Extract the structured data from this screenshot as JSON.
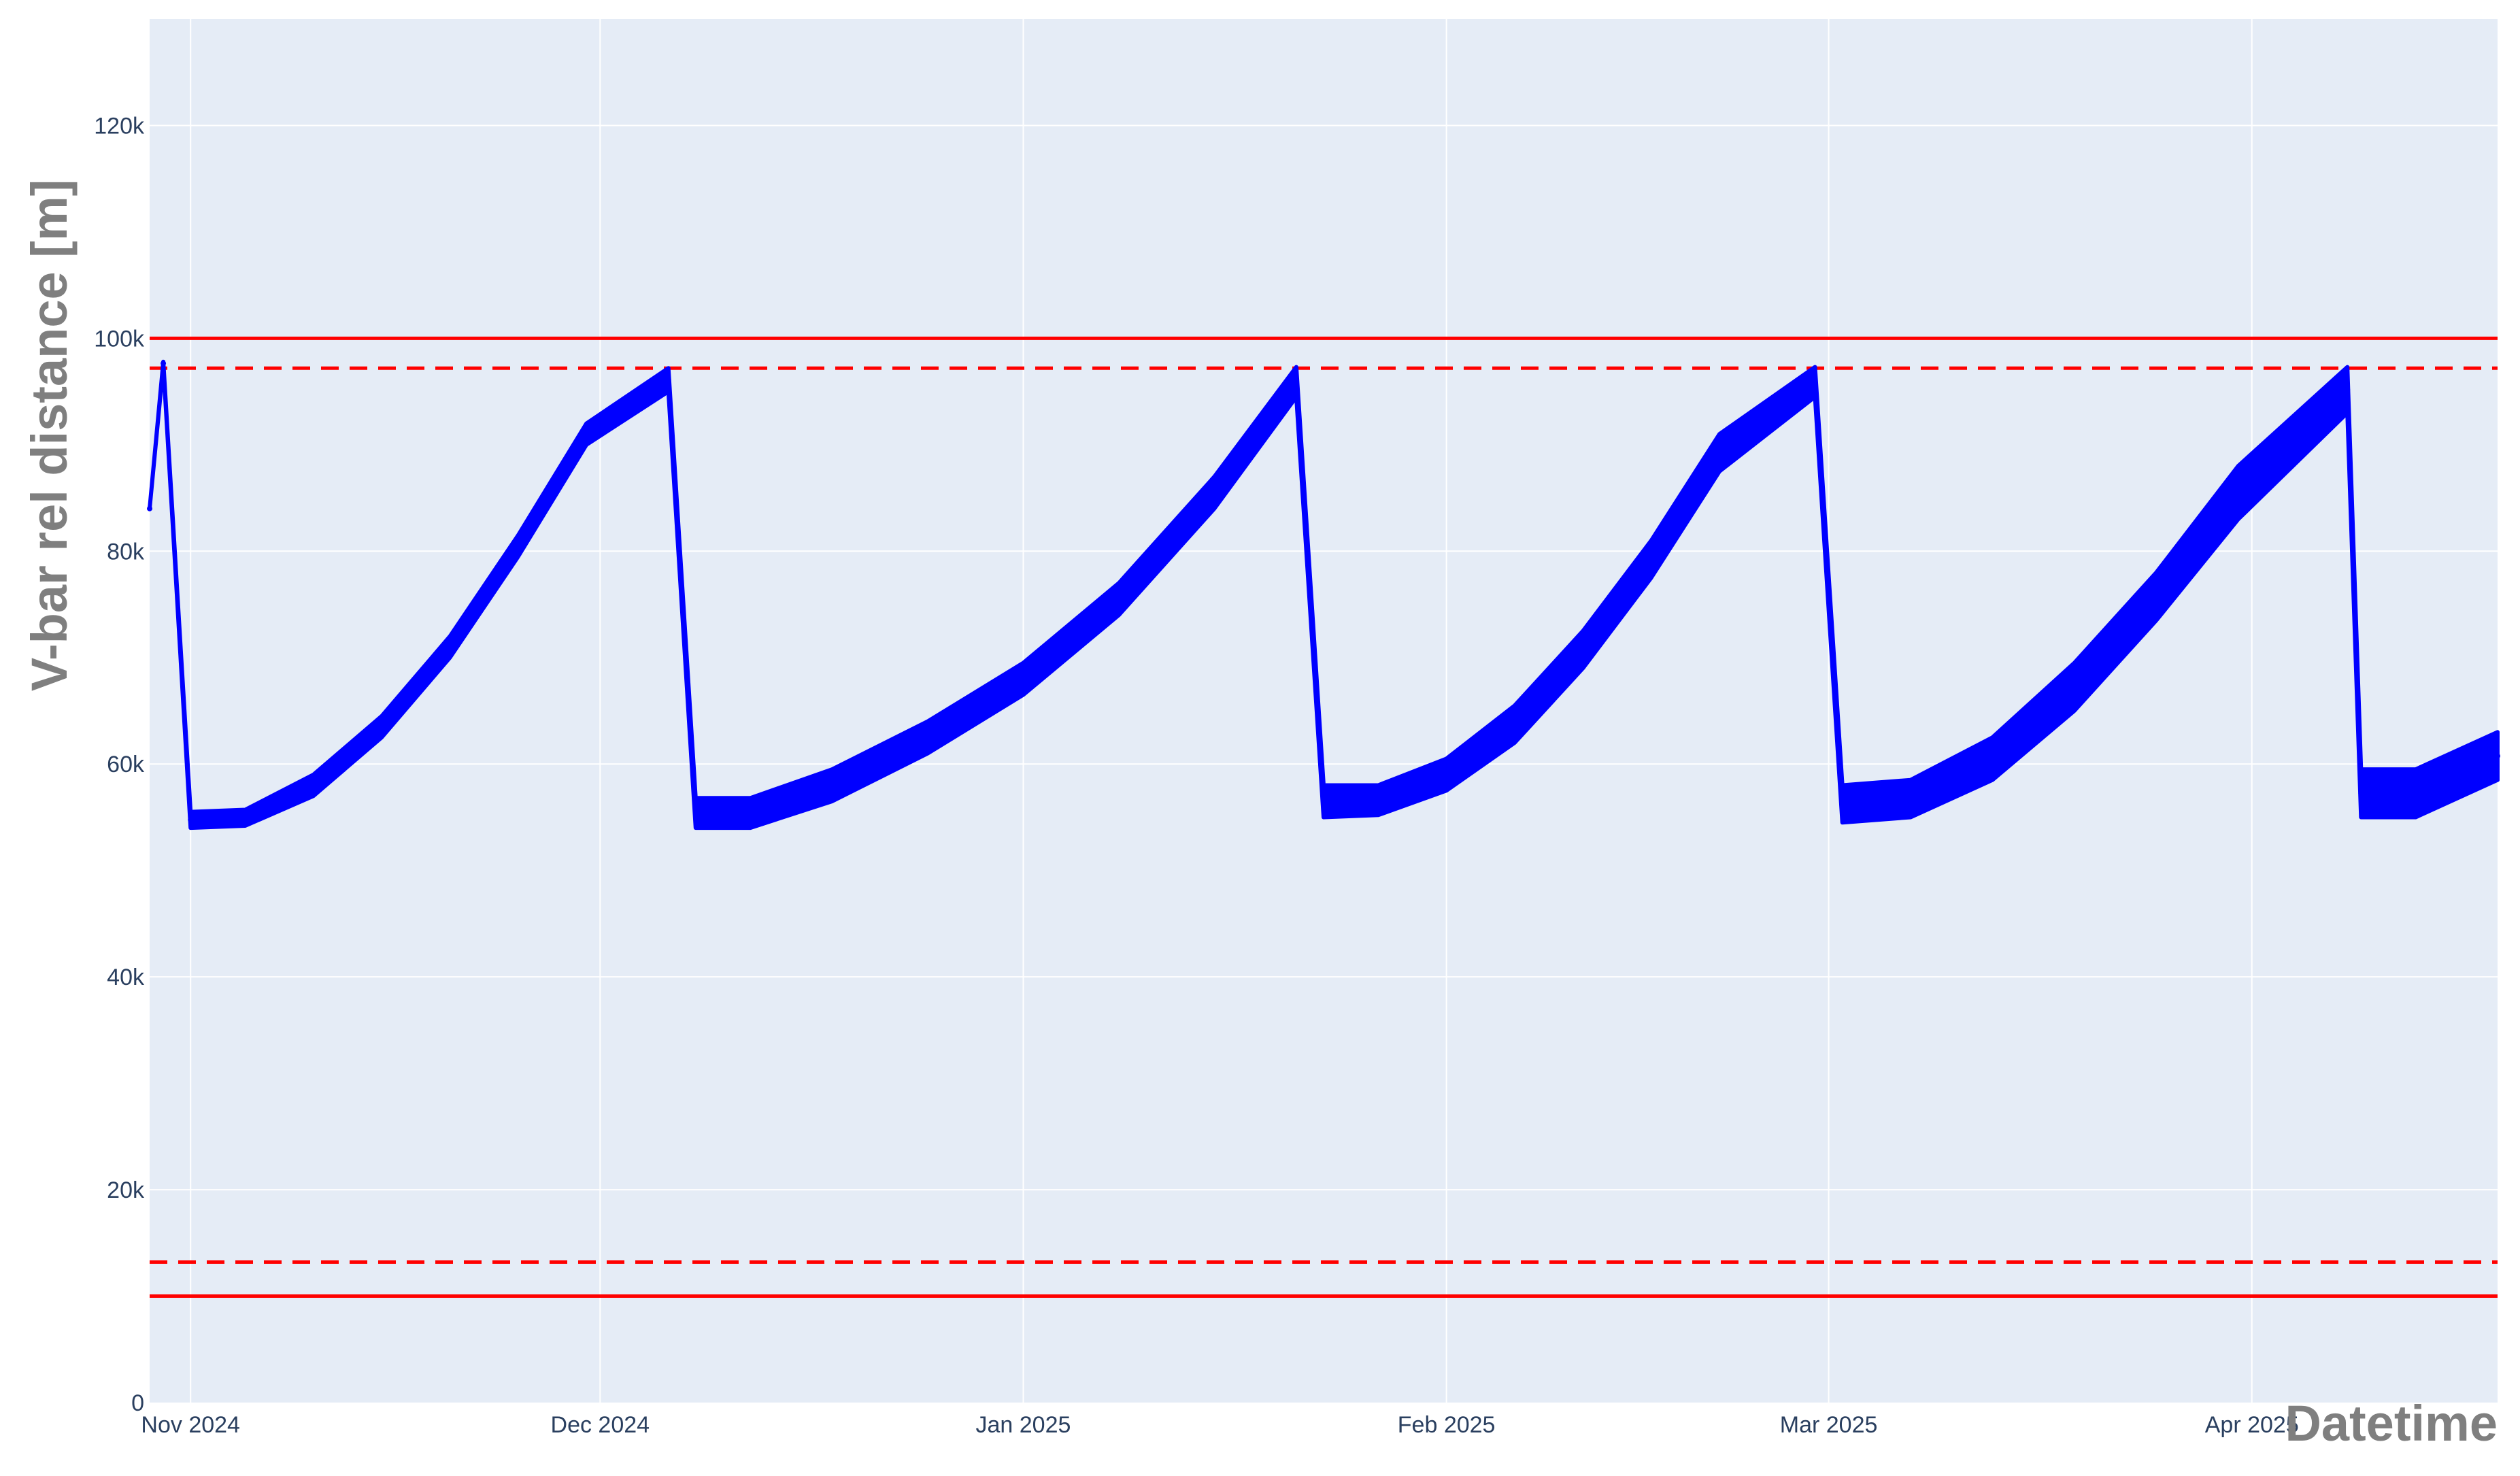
{
  "chart_data": {
    "type": "line",
    "title": "",
    "xlabel": "Datetime",
    "ylabel": "V-bar rel distance [m]",
    "x_range": [
      "2024-10-29",
      "2025-04-19"
    ],
    "ylim": [
      0,
      130000
    ],
    "y_ticks": [
      {
        "value": 0,
        "label": "0"
      },
      {
        "value": 20000,
        "label": "20k"
      },
      {
        "value": 40000,
        "label": "40k"
      },
      {
        "value": 60000,
        "label": "60k"
      },
      {
        "value": 80000,
        "label": "80k"
      },
      {
        "value": 100000,
        "label": "100k"
      },
      {
        "value": 120000,
        "label": "120k"
      }
    ],
    "x_ticks": [
      {
        "date": "2024-11-01",
        "label": "Nov 2024"
      },
      {
        "date": "2024-12-01",
        "label": "Dec 2024"
      },
      {
        "date": "2025-01-01",
        "label": "Jan 2025"
      },
      {
        "date": "2025-02-01",
        "label": "Feb 2025"
      },
      {
        "date": "2025-03-01",
        "label": "Mar 2025"
      },
      {
        "date": "2025-04-01",
        "label": "Apr 2025"
      }
    ],
    "grid": true,
    "legend": "none",
    "series": [
      {
        "color": "#0000ff",
        "style": "oscillating band",
        "points": [
          {
            "date": "2024-10-29",
            "low": 84000,
            "high": 84000
          },
          {
            "date": "2024-10-30",
            "low": 97500,
            "high": 97800
          },
          {
            "date": "2024-11-01",
            "low": 54000,
            "high": 55500
          },
          {
            "date": "2024-11-05",
            "low": 54200,
            "high": 55700
          },
          {
            "date": "2024-11-10",
            "low": 57000,
            "high": 59000
          },
          {
            "date": "2024-11-15",
            "low": 62500,
            "high": 64500
          },
          {
            "date": "2024-11-20",
            "low": 70000,
            "high": 72000
          },
          {
            "date": "2024-11-25",
            "low": 79500,
            "high": 81500
          },
          {
            "date": "2024-11-30",
            "low": 90000,
            "high": 92000
          },
          {
            "date": "2024-12-06",
            "low": 95000,
            "high": 97200
          },
          {
            "date": "2024-12-08",
            "low": 54000,
            "high": 56800
          },
          {
            "date": "2024-12-12",
            "low": 54000,
            "high": 56800
          },
          {
            "date": "2024-12-18",
            "low": 56500,
            "high": 59500
          },
          {
            "date": "2024-12-25",
            "low": 61000,
            "high": 64000
          },
          {
            "date": "2025-01-01",
            "low": 66500,
            "high": 69500
          },
          {
            "date": "2025-01-08",
            "low": 74000,
            "high": 77000
          },
          {
            "date": "2025-01-15",
            "low": 84000,
            "high": 87000
          },
          {
            "date": "2025-01-21",
            "low": 94500,
            "high": 97300
          },
          {
            "date": "2025-01-23",
            "low": 55000,
            "high": 58000
          },
          {
            "date": "2025-01-27",
            "low": 55200,
            "high": 58000
          },
          {
            "date": "2025-02-01",
            "low": 57500,
            "high": 60500
          },
          {
            "date": "2025-02-06",
            "low": 62000,
            "high": 65500
          },
          {
            "date": "2025-02-11",
            "low": 69000,
            "high": 72500
          },
          {
            "date": "2025-02-16",
            "low": 77500,
            "high": 81000
          },
          {
            "date": "2025-02-21",
            "low": 87500,
            "high": 91000
          },
          {
            "date": "2025-02-28",
            "low": 94500,
            "high": 97300
          },
          {
            "date": "2025-03-02",
            "low": 54500,
            "high": 58000
          },
          {
            "date": "2025-03-07",
            "low": 55000,
            "high": 58500
          },
          {
            "date": "2025-03-13",
            "low": 58500,
            "high": 62500
          },
          {
            "date": "2025-03-19",
            "low": 65000,
            "high": 69500
          },
          {
            "date": "2025-03-25",
            "low": 73500,
            "high": 78000
          },
          {
            "date": "2025-03-31",
            "low": 83000,
            "high": 88000
          },
          {
            "date": "2025-04-08",
            "low": 93000,
            "high": 97300
          },
          {
            "date": "2025-04-09",
            "low": 55000,
            "high": 59500
          },
          {
            "date": "2025-04-13",
            "low": 55000,
            "high": 59500
          },
          {
            "date": "2025-04-19",
            "low": 58500,
            "high": 63000
          }
        ]
      }
    ],
    "threshold_lines": [
      {
        "value": 100000,
        "color": "#ff0000",
        "style": "solid"
      },
      {
        "value": 97200,
        "color": "#ff0000",
        "style": "dashed"
      },
      {
        "value": 13200,
        "color": "#ff0000",
        "style": "dashed"
      },
      {
        "value": 10000,
        "color": "#ff0000",
        "style": "solid"
      }
    ],
    "colors": {
      "plot_background": "#e5ecf6",
      "grid": "#ffffff",
      "tick_text": "#2a3f5f",
      "axis_title": "#7f7f7f"
    }
  }
}
